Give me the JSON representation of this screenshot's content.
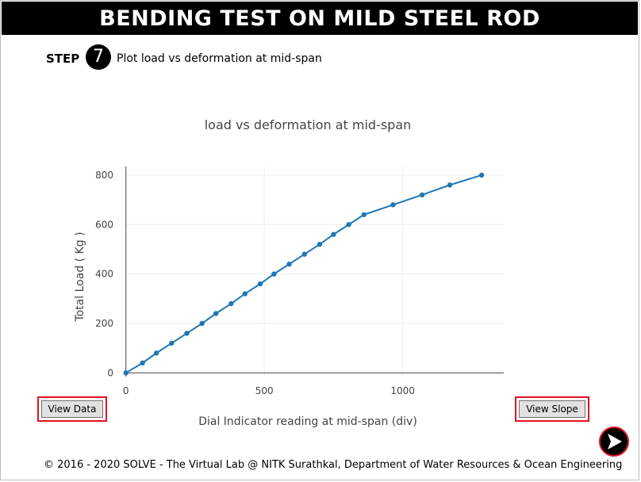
{
  "page": {
    "title": "BENDING TEST ON MILD STEEL ROD",
    "step_label": "STEP",
    "step_number": "7",
    "step_text": "Plot load vs deformation at mid-span"
  },
  "buttons": {
    "view_data": "View Data",
    "view_slope": "View Slope",
    "next_icon": "next-arrow-icon"
  },
  "footer": {
    "text": "© 2016 - 2020 SOLVE - The Virtual Lab @ NITK Surathkal, Department of Water Resources & Ocean Engineering"
  },
  "colors": {
    "title_bg": "#000000",
    "series": "#1f77b4",
    "button_outline": "#e0141e"
  },
  "chart_data": {
    "type": "line",
    "title": "load vs deformation at mid-span",
    "xlabel": "Dial Indicator reading at mid-span (div)",
    "ylabel": "Total Load ( Kg )",
    "xlim": [
      -5,
      1365
    ],
    "ylim": [
      -15,
      835
    ],
    "xticks": [
      0,
      500,
      1000
    ],
    "yticks": [
      0,
      200,
      400,
      600,
      800
    ],
    "grid": true,
    "legend": "none",
    "series": [
      {
        "x": [
          0,
          60,
          110,
          165,
          220,
          275,
          325,
          380,
          430,
          485,
          535,
          590,
          645,
          700,
          750,
          805,
          860,
          965,
          1070,
          1170,
          1285
        ],
        "y": [
          0,
          40,
          80,
          120,
          160,
          200,
          240,
          280,
          320,
          360,
          400,
          440,
          480,
          520,
          560,
          600,
          640,
          680,
          720,
          760,
          800
        ]
      }
    ]
  }
}
